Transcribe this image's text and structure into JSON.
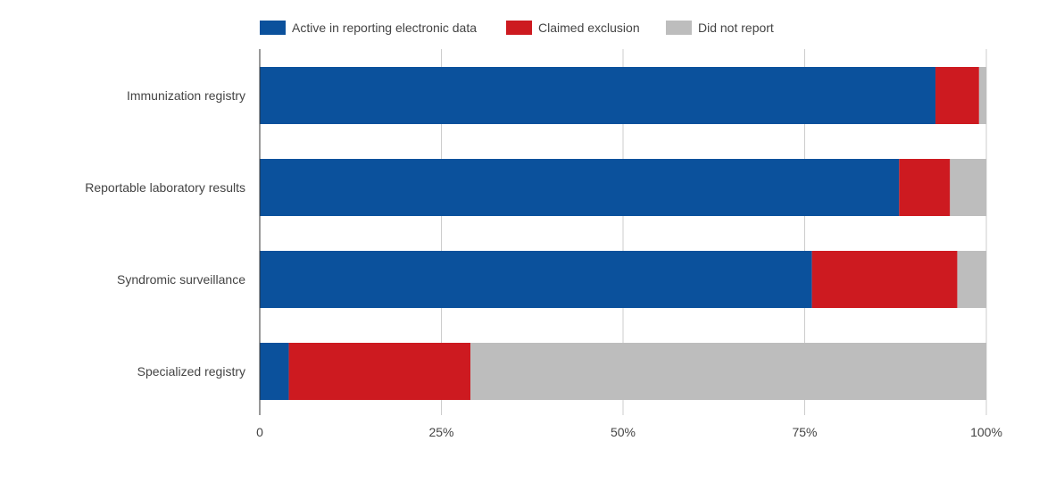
{
  "chart_data": {
    "type": "bar",
    "orientation": "horizontal",
    "stacked": true,
    "categories": [
      "Immunization registry",
      "Reportable laboratory results",
      "Syndromic surveillance",
      "Specialized registry"
    ],
    "series": [
      {
        "name": "Active in reporting electronic data",
        "color": "#0b519c",
        "values": [
          93,
          88,
          76,
          4
        ]
      },
      {
        "name": "Claimed exclusion",
        "color": "#cd1a20",
        "values": [
          6,
          7,
          20,
          25
        ]
      },
      {
        "name": "Did not report",
        "color": "#bdbdbd",
        "values": [
          1,
          5,
          4,
          71
        ]
      }
    ],
    "xlim": [
      0,
      100
    ],
    "xticks": [
      {
        "value": 0,
        "label": "0"
      },
      {
        "value": 25,
        "label": "25%"
      },
      {
        "value": 50,
        "label": "50%"
      },
      {
        "value": 75,
        "label": "75%"
      },
      {
        "value": 100,
        "label": "100%"
      }
    ],
    "grid": true,
    "legend_position": "top",
    "colors": {
      "gridline": "#cccccc",
      "axis": "#333333",
      "text": "#444444"
    }
  }
}
